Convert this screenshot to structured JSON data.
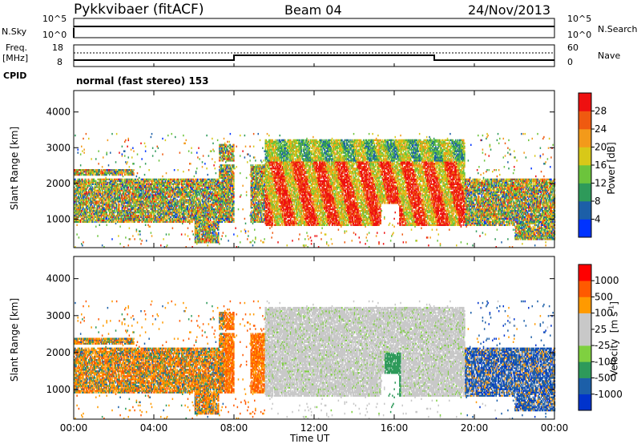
{
  "header": {
    "radar": "Pykkvibaer (fitACF)",
    "beam": "Beam 04",
    "date": "24/Nov/2013"
  },
  "status": {
    "nsky_label": "N.Sky",
    "nsky_ticks": [
      "10^5",
      "10^0"
    ],
    "nsearch_label": "N.Search",
    "nsearch_ticks": [
      "10^5",
      "10^0"
    ],
    "freq_label": "Freq.",
    "freq_unit": "[MHz]",
    "freq_ticks": [
      "18",
      "8"
    ],
    "nave_label": "Nave",
    "nave_ticks": [
      "60",
      "0"
    ],
    "cpid_label": "CPID",
    "cpid_value": "normal (fast stereo) 153"
  },
  "colors": {
    "power": [
      "#0033ff",
      "#1c5fa8",
      "#2e9a5a",
      "#6cc43c",
      "#d8c818",
      "#f39a1a",
      "#ef5a10",
      "#ee1010"
    ],
    "velocity": [
      "#ff0000",
      "#ff5a00",
      "#ff9a00",
      "#c8c8c8",
      "#c8c8c8",
      "#7fd040",
      "#2e9a5a",
      "#1c5fa8",
      "#0033cc"
    ]
  },
  "chart_data": [
    {
      "type": "heatmap",
      "title": "Power",
      "xlabel": "Time UT",
      "ylabel": "Slant Range [km]",
      "x_ticks": [
        "00:00",
        "04:00",
        "08:00",
        "12:00",
        "16:00",
        "20:00",
        "00:00"
      ],
      "y_ticks": [
        1000,
        2000,
        3000,
        4000
      ],
      "ylim": [
        200,
        4600
      ],
      "colorbar": {
        "label": "Power [dB]",
        "ticks": [
          4,
          8,
          12,
          16,
          20,
          24,
          28
        ]
      }
    },
    {
      "type": "heatmap",
      "title": "Velocity",
      "xlabel": "Time UT",
      "ylabel": "Slant Range [km]",
      "x_ticks": [
        "00:00",
        "04:00",
        "08:00",
        "12:00",
        "16:00",
        "20:00",
        "00:00"
      ],
      "y_ticks": [
        1000,
        2000,
        3000,
        4000
      ],
      "ylim": [
        200,
        4600
      ],
      "colorbar": {
        "label": "Velocity",
        "unit": "[m s",
        "unit_exp": "-1",
        "unit_close": "]",
        "ticks": [
          1000,
          500,
          100,
          25,
          -25,
          -100,
          -500,
          -1000
        ]
      }
    }
  ]
}
